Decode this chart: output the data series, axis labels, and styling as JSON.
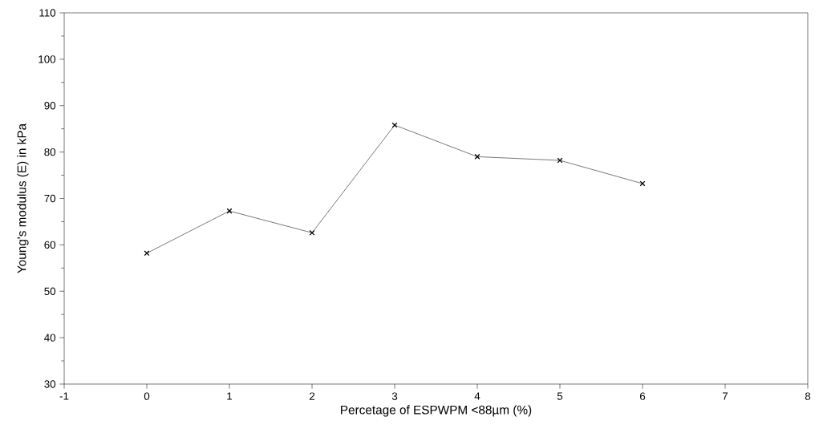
{
  "chart_data": {
    "type": "line",
    "xlabel": "Percetage of ESPWPM <88µm (%)",
    "ylabel": "Young's modulus (E) in kPa",
    "x": [
      0,
      1,
      2,
      3,
      4,
      5,
      6
    ],
    "series": [
      {
        "color": "#000000",
        "values": [
          58.2,
          67.3,
          62.6,
          85.8,
          79.0,
          78.2,
          73.2
        ]
      }
    ],
    "xlim": [
      -1,
      8
    ],
    "ylim": [
      30,
      110
    ],
    "xticks": [
      -1,
      0,
      1,
      2,
      3,
      4,
      5,
      6,
      7,
      8
    ],
    "yticks": [
      30,
      40,
      50,
      60,
      70,
      80,
      90,
      100,
      110
    ],
    "marker": "cross",
    "line_style": "solid",
    "grid": false
  }
}
